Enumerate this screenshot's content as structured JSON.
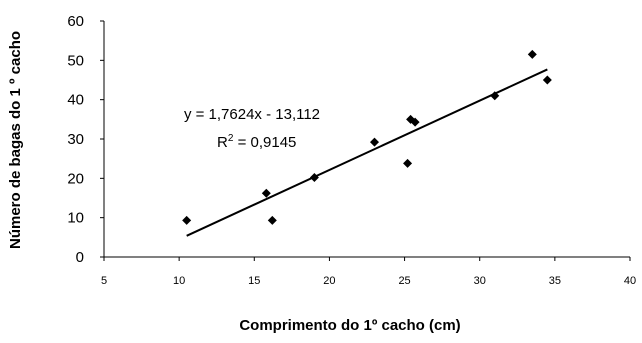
{
  "chart_data": {
    "type": "scatter",
    "title": "",
    "xlabel": "Comprimento do 1º cacho (cm)",
    "ylabel": "Número de bagas do 1 º cacho",
    "xlim": [
      5,
      40
    ],
    "ylim": [
      0,
      60
    ],
    "x_ticks": [
      "5",
      "10",
      "15",
      "20",
      "25",
      "30",
      "35",
      "40"
    ],
    "y_ticks": [
      "0",
      "10",
      "20",
      "30",
      "40",
      "50",
      "60"
    ],
    "grid": false,
    "legend": "none",
    "marker": "diamond",
    "marker_color": "#000000",
    "points": [
      {
        "x": 10.5,
        "y": 9.3
      },
      {
        "x": 15.8,
        "y": 16.2
      },
      {
        "x": 16.2,
        "y": 9.3
      },
      {
        "x": 19.0,
        "y": 20.2
      },
      {
        "x": 23.0,
        "y": 29.2
      },
      {
        "x": 25.2,
        "y": 23.8
      },
      {
        "x": 25.4,
        "y": 35.0
      },
      {
        "x": 25.7,
        "y": 34.3
      },
      {
        "x": 31.0,
        "y": 41.0
      },
      {
        "x": 33.5,
        "y": 51.5
      },
      {
        "x": 34.5,
        "y": 45.0
      }
    ],
    "trendline": {
      "slope": 1.7624,
      "intercept": -13.112,
      "x_range": [
        10.5,
        34.5
      ],
      "equation": "y = 1,7624x - 13,112",
      "r2_label": "R",
      "r2_sup": "2",
      "r2_value": " = 0,9145"
    }
  }
}
